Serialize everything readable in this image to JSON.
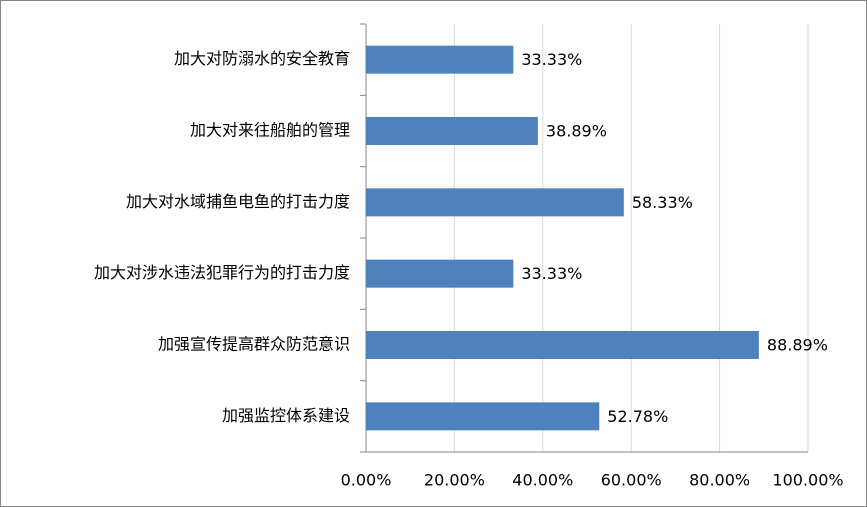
{
  "chart_data": {
    "type": "bar",
    "orientation": "horizontal",
    "categories": [
      "加大对防溺水的安全教育",
      "加大对来往船舶的管理",
      "加大对水域捕鱼电鱼的打击力度",
      "加大对涉水违法犯罪行为的打击力度",
      "加强宣传提高群众防范意识",
      "加强监控体系建设"
    ],
    "values": [
      33.33,
      38.89,
      58.33,
      33.33,
      88.89,
      52.78
    ],
    "value_labels": [
      "33.33%",
      "38.89%",
      "58.33%",
      "33.33%",
      "88.89%",
      "52.78%"
    ],
    "color": "#4f81bd",
    "xlim": [
      0,
      100
    ],
    "xticks": [
      {
        "value": 0,
        "label": "0.00%"
      },
      {
        "value": 20,
        "label": "20.00%"
      },
      {
        "value": 40,
        "label": "40.00%"
      },
      {
        "value": 60,
        "label": "60.00%"
      },
      {
        "value": 80,
        "label": "80.00%"
      },
      {
        "value": 100,
        "label": "100.00%"
      }
    ],
    "grid": true
  }
}
